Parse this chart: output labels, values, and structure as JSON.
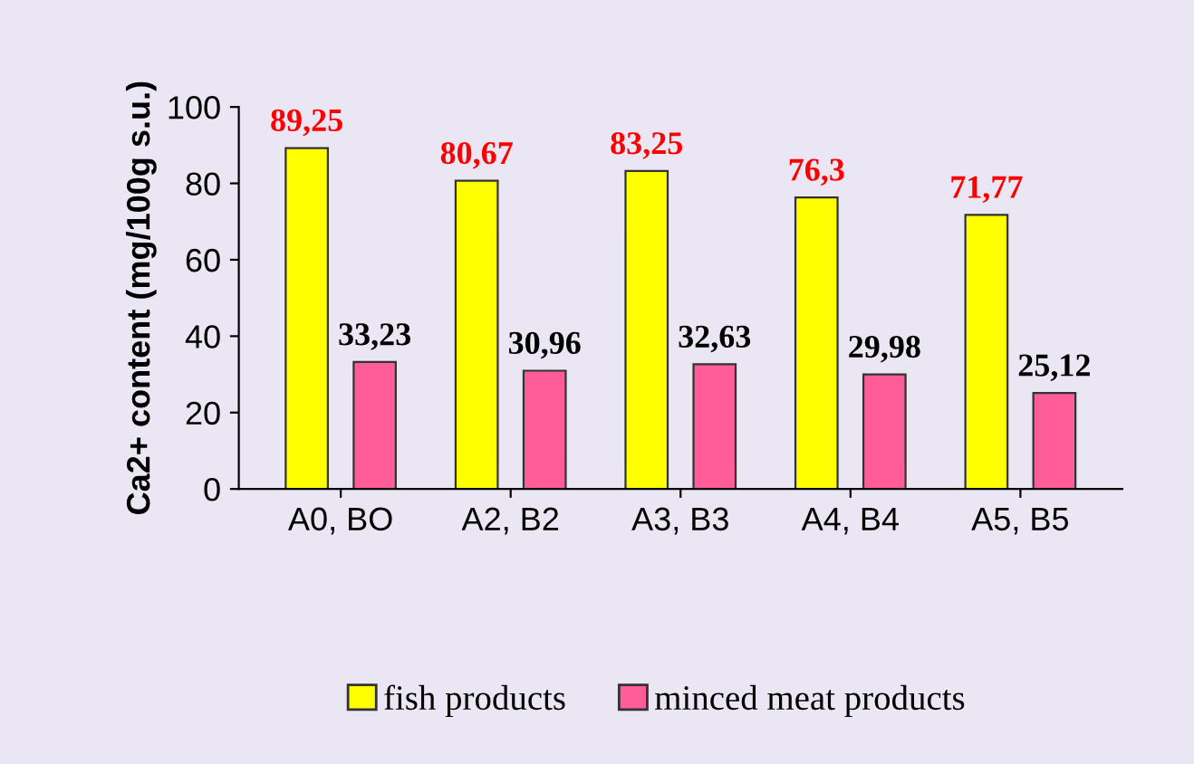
{
  "chart_data": {
    "type": "bar",
    "ylabel": "Ca2+ content (mg/100g s.u.)",
    "categories": [
      "A0, BO",
      "A2, B2",
      "A3, B3",
      "A4, B4",
      "A5, B5"
    ],
    "series": [
      {
        "name": "fish products",
        "color": "#ffff00",
        "values": [
          89.25,
          80.67,
          83.25,
          76.3,
          71.77
        ],
        "value_labels": [
          "89,25",
          "80,67",
          "83,25",
          "76,3",
          "71,77"
        ]
      },
      {
        "name": "minced meat products",
        "color": "#ff5c9a",
        "values": [
          33.23,
          30.96,
          32.63,
          29.98,
          25.12
        ],
        "value_labels": [
          "33,23",
          "30,96",
          "32,63",
          "29,98",
          "25,12"
        ]
      }
    ],
    "ylim": [
      0,
      100
    ],
    "yticks": [
      0,
      20,
      40,
      60,
      80,
      100
    ],
    "grid": false,
    "legend": "bottom"
  }
}
